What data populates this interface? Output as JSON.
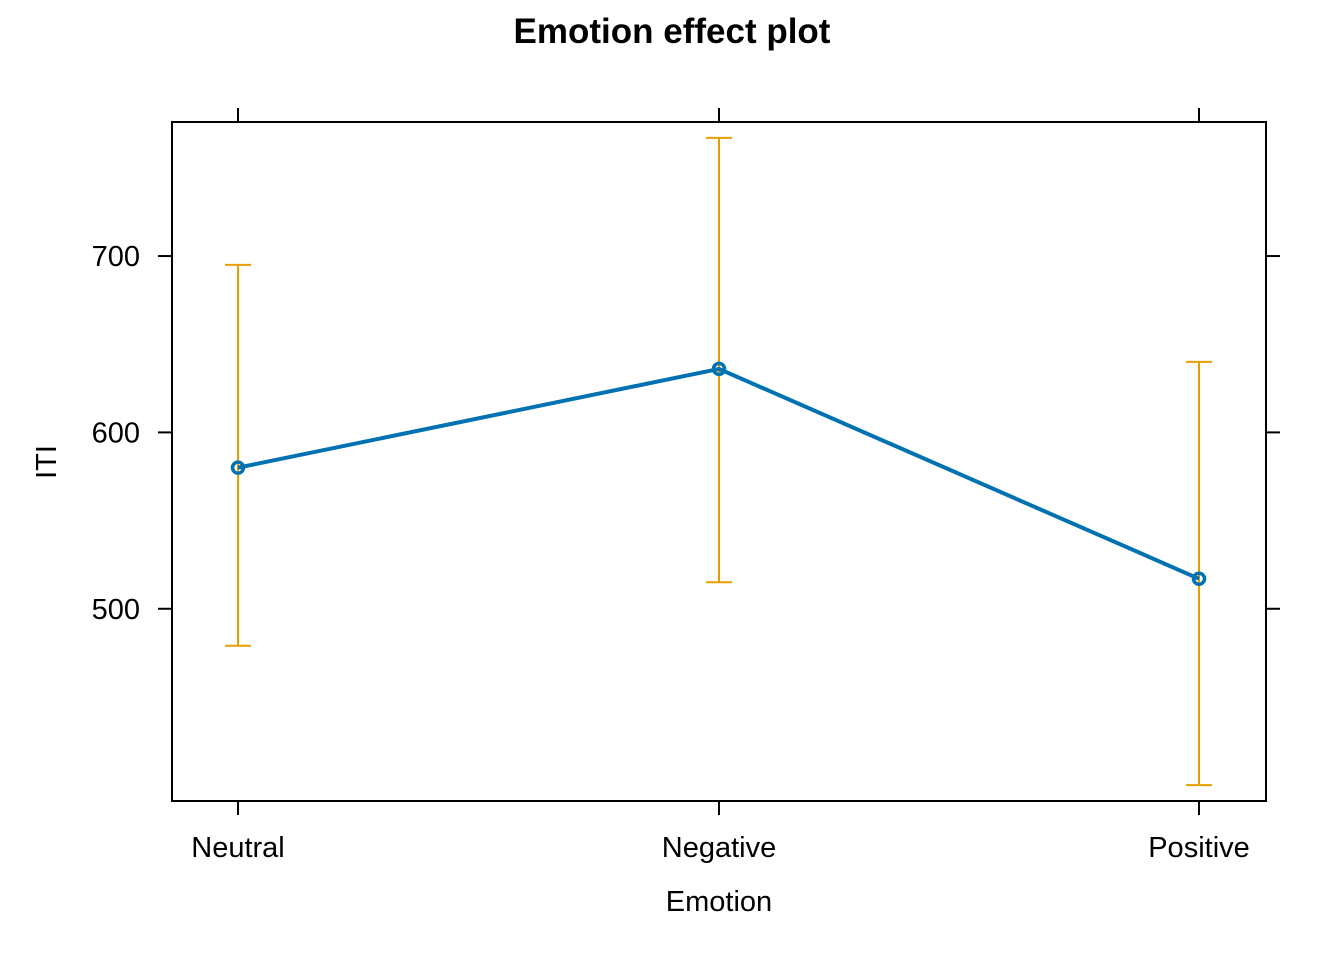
{
  "chart_data": {
    "type": "line",
    "title": "Emotion effect plot",
    "xlabel": "Emotion",
    "ylabel": "ITI",
    "categories": [
      "Neutral",
      "Negative",
      "Positive"
    ],
    "series": [
      {
        "values": [
          580,
          636,
          517
        ],
        "lower": [
          479,
          515,
          400
        ],
        "upper": [
          695,
          767,
          640
        ]
      }
    ],
    "yticks": [
      500,
      600,
      700
    ],
    "ylim": [
      391,
      776
    ],
    "grid": false,
    "colors": {
      "line": "#0072B2",
      "errorbar": "#E69F00",
      "axis": "#000000"
    }
  }
}
